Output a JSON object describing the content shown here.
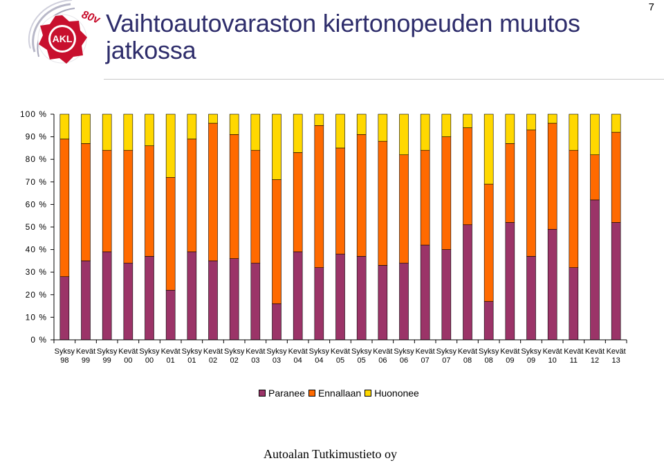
{
  "header": {
    "title": "Vaihtoautovaraston kiertonopeuden muutos jatkossa",
    "page_number": "7"
  },
  "logo": {
    "text": "AKL",
    "badge_text": "80v"
  },
  "footer": {
    "text": "Autoalan Tutkimustieto oy"
  },
  "colors": {
    "Paranee": "#9b3468",
    "Ennallaan": "#ff6a00",
    "Huononee": "#ffd800",
    "title": "#2e2d6b"
  },
  "chart_data": {
    "type": "bar",
    "stacked": true,
    "percent_stacked": true,
    "categories": [
      [
        "Syksy",
        "98"
      ],
      [
        "Kevät",
        "99"
      ],
      [
        "Syksy",
        "99"
      ],
      [
        "Kevät",
        "00"
      ],
      [
        "Syksy",
        "00"
      ],
      [
        "Kevät",
        "01"
      ],
      [
        "Syksy",
        "01"
      ],
      [
        "Kevät",
        "02"
      ],
      [
        "Syksy",
        "02"
      ],
      [
        "Kevät",
        "03"
      ],
      [
        "Syksy",
        "03"
      ],
      [
        "Kevät",
        "04"
      ],
      [
        "Syksy",
        "04"
      ],
      [
        "Kevät",
        "05"
      ],
      [
        "Syksy",
        "05"
      ],
      [
        "Kevät",
        "06"
      ],
      [
        "Syksy",
        "06"
      ],
      [
        "Kevät",
        "07"
      ],
      [
        "Syksy",
        "07"
      ],
      [
        "Kevät",
        "08"
      ],
      [
        "Syksy",
        "08"
      ],
      [
        "Kevät",
        "09"
      ],
      [
        "Syksy",
        "09"
      ],
      [
        "Kevät",
        "10"
      ],
      [
        "Kevät",
        "11"
      ],
      [
        "Kevät",
        "12"
      ],
      [
        "Kevät",
        "13"
      ]
    ],
    "series": [
      {
        "name": "Paranee",
        "values": [
          28,
          35,
          39,
          34,
          37,
          22,
          39,
          35,
          36,
          34,
          16,
          39,
          32,
          38,
          37,
          33,
          34,
          42,
          40,
          51,
          17,
          52,
          37,
          49,
          32,
          62,
          52
        ]
      },
      {
        "name": "Ennallaan",
        "values": [
          61,
          52,
          45,
          50,
          49,
          50,
          50,
          61,
          55,
          50,
          55,
          44,
          63,
          47,
          54,
          55,
          48,
          42,
          50,
          43,
          52,
          35,
          56,
          47,
          52,
          20,
          40
        ]
      },
      {
        "name": "Huononee",
        "values": [
          11,
          13,
          16,
          16,
          14,
          28,
          11,
          4,
          9,
          16,
          29,
          17,
          5,
          15,
          9,
          12,
          18,
          16,
          10,
          6,
          31,
          13,
          7,
          4,
          16,
          18,
          8
        ]
      }
    ],
    "ylim": [
      0,
      100
    ],
    "yticks": [
      "0 %",
      "10 %",
      "20 %",
      "30 %",
      "40 %",
      "50 %",
      "60 %",
      "70 %",
      "80 %",
      "90 %",
      "100 %"
    ],
    "grid": false,
    "legend_position": "bottom"
  }
}
